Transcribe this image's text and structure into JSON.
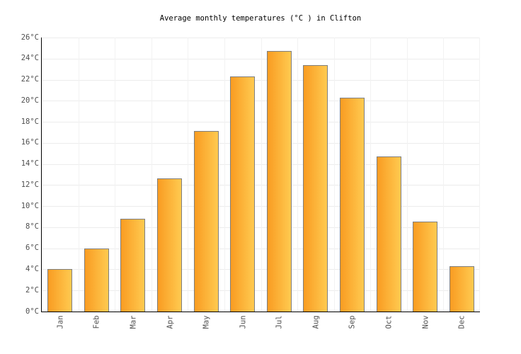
{
  "title": "Average monthly temperatures (°C ) in Clifton",
  "chart_data": {
    "type": "bar",
    "title": "Average monthly temperatures (°C ) in Clifton",
    "categories": [
      "Jan",
      "Feb",
      "Mar",
      "Apr",
      "May",
      "Jun",
      "Jul",
      "Aug",
      "Sep",
      "Oct",
      "Nov",
      "Dec"
    ],
    "values": [
      4.0,
      6.0,
      8.8,
      12.6,
      17.1,
      22.3,
      24.7,
      23.4,
      20.3,
      14.7,
      8.5,
      4.3
    ],
    "xlabel": "",
    "ylabel": "",
    "ylim": [
      0,
      26
    ],
    "ytick_step": 2,
    "ytick_suffix": "°C",
    "grid": true,
    "legend": "none",
    "colors": {
      "bar_gradient_left": "#F99C22",
      "bar_gradient_right": "#FFCA50",
      "bar_border": "#7e7e7e",
      "axis_line": "#000000",
      "hgrid_line": "#ececec",
      "vgrid_line": "#f2f2f2",
      "tick_label": "#4f4f4f",
      "title_text": "#000000",
      "background": "#ffffff"
    }
  }
}
